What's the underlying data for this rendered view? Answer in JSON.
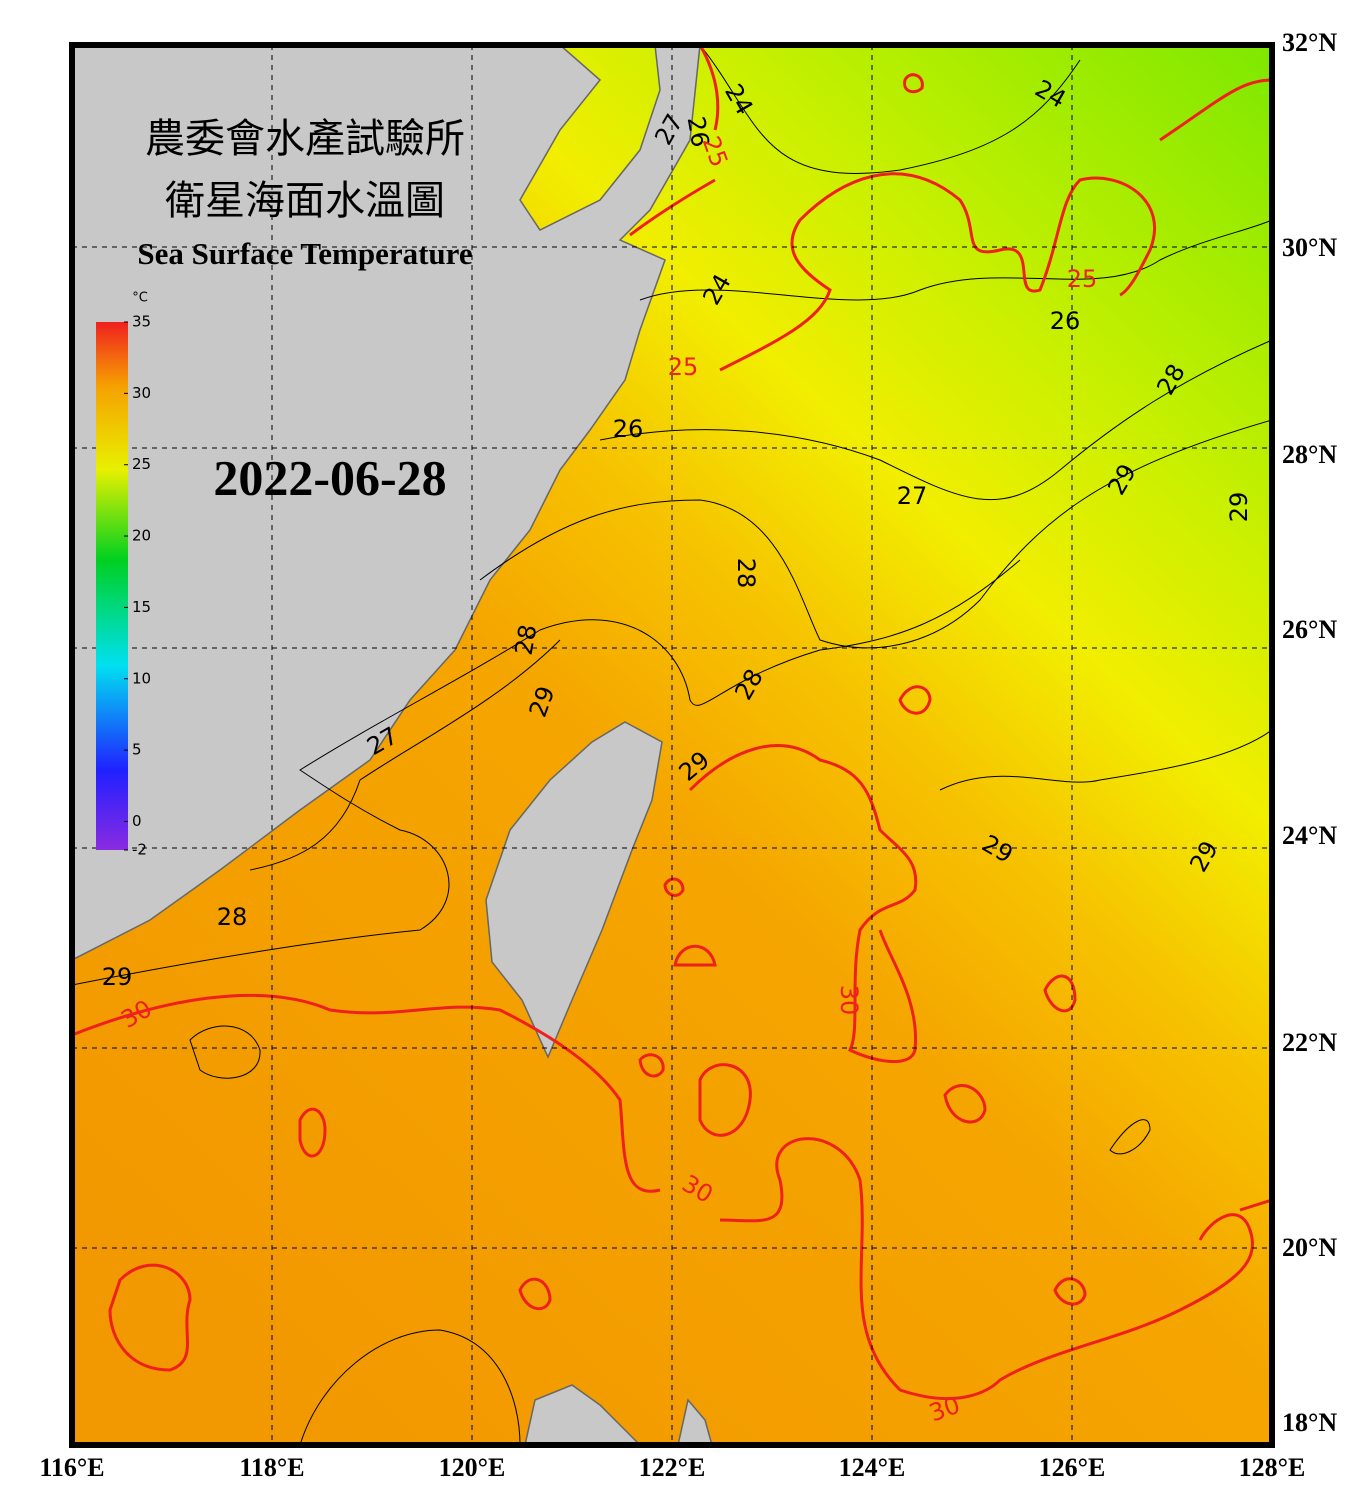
{
  "header": {
    "title_zh_1": "農委會水產試驗所",
    "title_zh_2": "衛星海面水溫圖",
    "title_en": "Sea Surface Temperature",
    "date": "2022-06-28"
  },
  "colorbar": {
    "unit": "°C",
    "range": [
      -2,
      35
    ],
    "ticks": [
      35,
      30,
      25,
      20,
      15,
      10,
      5,
      0,
      -2
    ]
  },
  "axes": {
    "lon_labels": [
      "116°E",
      "118°E",
      "120°E",
      "122°E",
      "124°E",
      "126°E",
      "128°E"
    ],
    "lat_labels": [
      "32°N",
      "30°N",
      "28°N",
      "26°N",
      "24°N",
      "22°N",
      "20°N",
      "18°N"
    ]
  },
  "contour_labels": [
    {
      "text": "24",
      "color": "#000000"
    },
    {
      "text": "24",
      "color": "#000000"
    },
    {
      "text": "27",
      "color": "#000000"
    },
    {
      "text": "26",
      "color": "#000000"
    },
    {
      "text": "25",
      "color": "#ee2020"
    },
    {
      "text": "25",
      "color": "#ee2020"
    },
    {
      "text": "26",
      "color": "#000000"
    },
    {
      "text": "24",
      "color": "#000000"
    },
    {
      "text": "25",
      "color": "#ee2020"
    },
    {
      "text": "28",
      "color": "#000000"
    },
    {
      "text": "26",
      "color": "#000000"
    },
    {
      "text": "29",
      "color": "#000000"
    },
    {
      "text": "27",
      "color": "#000000"
    },
    {
      "text": "29",
      "color": "#000000"
    },
    {
      "text": "28",
      "color": "#000000"
    },
    {
      "text": "28",
      "color": "#000000"
    },
    {
      "text": "28",
      "color": "#000000"
    },
    {
      "text": "29",
      "color": "#000000"
    },
    {
      "text": "27",
      "color": "#000000"
    },
    {
      "text": "29",
      "color": "#000000"
    },
    {
      "text": "29",
      "color": "#000000"
    },
    {
      "text": "29",
      "color": "#000000"
    },
    {
      "text": "28",
      "color": "#000000"
    },
    {
      "text": "29",
      "color": "#000000"
    },
    {
      "text": "30",
      "color": "#ee2020"
    },
    {
      "text": "30",
      "color": "#ee2020"
    },
    {
      "text": "30",
      "color": "#ee2020"
    },
    {
      "text": "30",
      "color": "#ee2020"
    }
  ]
}
